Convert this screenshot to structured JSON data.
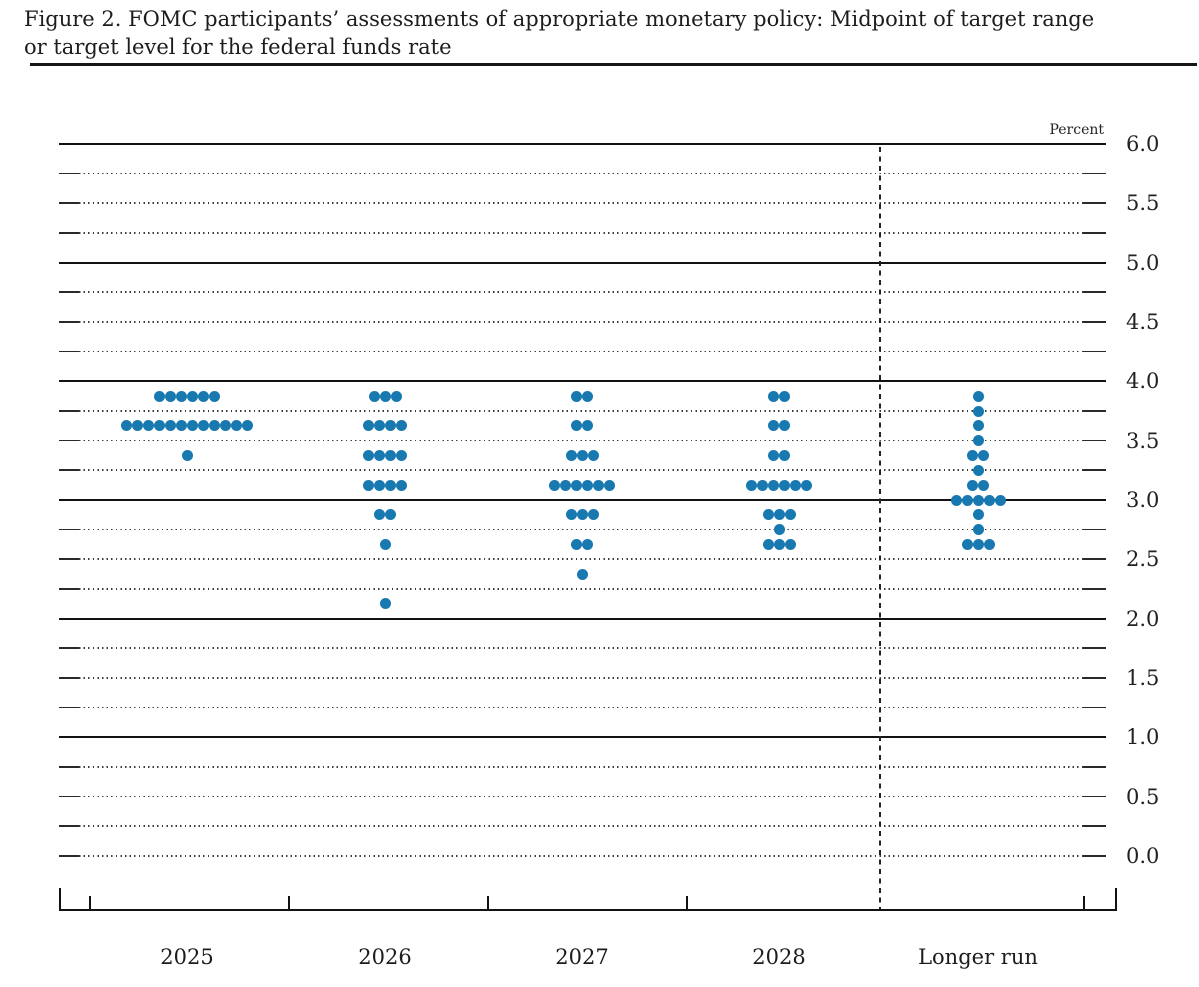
{
  "figure": {
    "title_line1": "Figure 2. FOMC participants’ assessments of appropriate monetary policy: Midpoint of target range",
    "title_line2": "or target level for the federal funds rate"
  },
  "chart_data": {
    "type": "scatter",
    "subtype": "fomc-dot-plot",
    "title": "Figure 2. FOMC participants’ assessments of appropriate monetary policy: Midpoint of target range or target level for the federal funds rate",
    "unit_label": "Percent",
    "y_axis": {
      "min": 0.0,
      "max": 6.0,
      "grid_step": 0.25,
      "label_step": 0.5,
      "solid_lines": [
        6.0,
        5.0,
        4.0,
        3.0,
        2.0,
        1.0
      ],
      "tick_labels": [
        {
          "value": 6.0,
          "label": "6.0"
        },
        {
          "value": 5.5,
          "label": "5.5"
        },
        {
          "value": 5.0,
          "label": "5.0"
        },
        {
          "value": 4.5,
          "label": "4.5"
        },
        {
          "value": 4.0,
          "label": "4.0"
        },
        {
          "value": 3.5,
          "label": "3.5"
        },
        {
          "value": 3.0,
          "label": "3.0"
        },
        {
          "value": 2.5,
          "label": "2.5"
        },
        {
          "value": 2.0,
          "label": "2.0"
        },
        {
          "value": 1.5,
          "label": "1.5"
        },
        {
          "value": 1.0,
          "label": "1.0"
        },
        {
          "value": 0.5,
          "label": "0.5"
        },
        {
          "value": 0.0,
          "label": "0.0"
        }
      ]
    },
    "x_axis": {
      "categories": [
        "2025",
        "2026",
        "2027",
        "2028",
        "Longer run"
      ],
      "dashed_separator_before": "Longer run"
    },
    "series": [
      {
        "category": "2025",
        "dots": [
          {
            "rate": 3.875,
            "count": 6
          },
          {
            "rate": 3.625,
            "count": 12
          },
          {
            "rate": 3.375,
            "count": 1
          }
        ]
      },
      {
        "category": "2026",
        "dots": [
          {
            "rate": 3.875,
            "count": 3
          },
          {
            "rate": 3.625,
            "count": 4
          },
          {
            "rate": 3.375,
            "count": 4
          },
          {
            "rate": 3.125,
            "count": 4
          },
          {
            "rate": 2.875,
            "count": 2
          },
          {
            "rate": 2.625,
            "count": 1
          },
          {
            "rate": 2.125,
            "count": 1
          }
        ]
      },
      {
        "category": "2027",
        "dots": [
          {
            "rate": 3.875,
            "count": 2
          },
          {
            "rate": 3.625,
            "count": 2
          },
          {
            "rate": 3.375,
            "count": 3
          },
          {
            "rate": 3.125,
            "count": 6
          },
          {
            "rate": 2.875,
            "count": 3
          },
          {
            "rate": 2.625,
            "count": 2
          },
          {
            "rate": 2.375,
            "count": 1
          }
        ]
      },
      {
        "category": "2028",
        "dots": [
          {
            "rate": 3.875,
            "count": 2
          },
          {
            "rate": 3.625,
            "count": 2
          },
          {
            "rate": 3.375,
            "count": 2
          },
          {
            "rate": 3.125,
            "count": 6
          },
          {
            "rate": 2.875,
            "count": 3
          },
          {
            "rate": 2.75,
            "count": 1
          },
          {
            "rate": 2.625,
            "count": 3
          }
        ]
      },
      {
        "category": "Longer run",
        "dots": [
          {
            "rate": 3.875,
            "count": 1
          },
          {
            "rate": 3.75,
            "count": 1
          },
          {
            "rate": 3.625,
            "count": 1
          },
          {
            "rate": 3.5,
            "count": 1
          },
          {
            "rate": 3.375,
            "count": 2
          },
          {
            "rate": 3.25,
            "count": 1
          },
          {
            "rate": 3.125,
            "count": 2
          },
          {
            "rate": 3.0,
            "count": 5
          },
          {
            "rate": 2.875,
            "count": 1
          },
          {
            "rate": 2.75,
            "count": 1
          },
          {
            "rate": 2.625,
            "count": 3
          }
        ]
      }
    ],
    "colors": {
      "dot": "#1878b0",
      "line": "#131313",
      "dotted_line": "#3c3c3c"
    }
  }
}
